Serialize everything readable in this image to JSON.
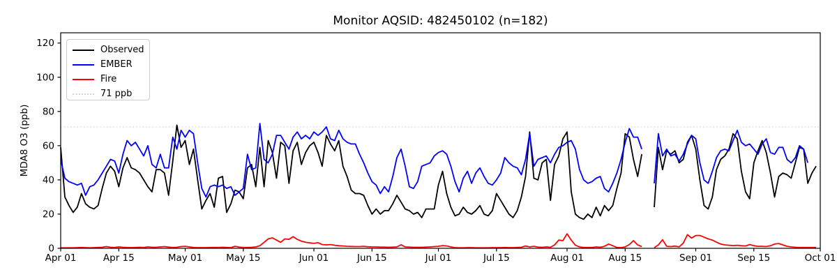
{
  "chart_data": {
    "type": "line",
    "title": "Monitor AQSID: 482450102 (n=182)",
    "ylabel": "MDA8 O3 (ppb)",
    "xlabel": "",
    "ylim": [
      0,
      126
    ],
    "y_ticks": [
      0,
      20,
      40,
      60,
      80,
      100,
      120
    ],
    "x_range_days": [
      0,
      183
    ],
    "x_ticks": [
      {
        "label": "Apr 01",
        "day": 0
      },
      {
        "label": "Apr 15",
        "day": 14
      },
      {
        "label": "May 01",
        "day": 30
      },
      {
        "label": "May 15",
        "day": 44
      },
      {
        "label": "Jun 01",
        "day": 61
      },
      {
        "label": "Jun 15",
        "day": 75
      },
      {
        "label": "Jul 01",
        "day": 91
      },
      {
        "label": "Jul 15",
        "day": 105
      },
      {
        "label": "Aug 01",
        "day": 122
      },
      {
        "label": "Aug 15",
        "day": 136
      },
      {
        "label": "Sep 01",
        "day": 153
      },
      {
        "label": "Sep 15",
        "day": 167
      },
      {
        "label": "Oct 01",
        "day": 183
      }
    ],
    "grid": false,
    "legend_position": "upper-left",
    "reference_line": {
      "label": "71 ppb",
      "value": 71,
      "color": "#d3d3d3",
      "style": "dotted"
    },
    "series": [
      {
        "name": "Observed",
        "color": "#000000",
        "values": [
          59,
          30,
          25,
          21,
          24,
          32,
          26,
          24,
          23,
          25,
          35,
          44,
          48,
          45,
          36,
          47,
          53,
          47,
          46,
          44,
          40,
          36,
          33,
          46,
          46,
          44,
          31,
          51,
          72,
          59,
          63,
          49,
          58,
          40,
          23,
          28,
          32,
          24,
          41,
          42,
          21,
          26,
          34,
          33,
          29,
          47,
          49,
          36,
          59,
          36,
          63,
          56,
          41,
          62,
          60,
          38,
          57,
          62,
          49,
          56,
          60,
          62,
          56,
          48,
          66,
          61,
          57,
          63,
          48,
          42,
          34,
          32,
          32,
          31,
          25,
          20,
          23,
          20,
          22,
          22,
          26,
          31,
          27,
          23,
          22,
          20,
          21,
          18,
          23,
          23,
          23,
          37,
          45,
          32,
          24,
          19,
          20,
          24,
          21,
          20,
          22,
          25,
          20,
          19,
          22,
          32,
          28,
          24,
          20,
          18,
          22,
          30,
          42,
          68,
          41,
          40,
          50,
          52,
          28,
          49,
          54,
          64,
          68,
          33,
          20,
          18,
          17,
          20,
          18,
          24,
          19,
          25,
          22,
          25,
          35,
          44,
          67,
          65,
          52,
          42,
          55,
          null,
          null,
          24,
          59,
          46,
          57,
          55,
          57,
          50,
          52,
          62,
          66,
          58,
          40,
          25,
          23,
          30,
          46,
          52,
          54,
          58,
          67,
          64,
          45,
          33,
          29,
          50,
          57,
          63,
          56,
          44,
          30,
          42,
          44,
          43,
          41,
          50,
          59,
          58,
          38,
          44,
          48,
          null
        ]
      },
      {
        "name": "EMBER",
        "color": "#0000ff",
        "values": [
          52,
          41,
          39,
          38,
          37,
          38,
          31,
          36,
          37,
          40,
          44,
          48,
          52,
          51,
          44,
          55,
          63,
          60,
          62,
          58,
          54,
          60,
          49,
          47,
          55,
          47,
          47,
          65,
          58,
          69,
          65,
          69,
          67,
          50,
          35,
          30,
          36,
          37,
          36,
          37,
          35,
          36,
          31,
          33,
          35,
          55,
          46,
          47,
          73,
          52,
          50,
          55,
          66,
          66,
          62,
          58,
          65,
          68,
          64,
          66,
          64,
          68,
          66,
          68,
          71,
          64,
          63,
          69,
          64,
          62,
          61,
          61,
          55,
          50,
          44,
          39,
          37,
          32,
          36,
          33,
          42,
          53,
          58,
          48,
          36,
          35,
          39,
          48,
          49,
          50,
          54,
          56,
          57,
          55,
          48,
          39,
          33,
          41,
          45,
          38,
          44,
          47,
          42,
          38,
          37,
          40,
          44,
          53,
          50,
          48,
          47,
          43,
          52,
          67,
          48,
          52,
          53,
          54,
          50,
          55,
          59,
          60,
          62,
          63,
          58,
          46,
          40,
          38,
          39,
          41,
          42,
          35,
          33,
          38,
          44,
          52,
          62,
          70,
          65,
          65,
          58,
          null,
          null,
          38,
          67,
          54,
          58,
          54,
          55,
          51,
          55,
          61,
          66,
          64,
          50,
          40,
          38,
          45,
          53,
          57,
          58,
          57,
          63,
          69,
          62,
          60,
          61,
          58,
          55,
          61,
          64,
          56,
          55,
          59,
          59,
          52,
          50,
          53,
          60,
          58,
          50,
          null,
          null,
          null
        ]
      },
      {
        "name": "Fire",
        "color": "#ff0000",
        "values": [
          0.3,
          0.3,
          0.3,
          0.3,
          0.4,
          0.5,
          0.4,
          0.3,
          0.4,
          0.5,
          0.6,
          1.0,
          0.6,
          0.5,
          0.8,
          0.6,
          0.5,
          0.4,
          0.5,
          0.6,
          0.5,
          0.8,
          0.6,
          0.6,
          0.8,
          1.0,
          0.7,
          0.5,
          0.6,
          1.0,
          1.2,
          0.8,
          0.5,
          0.4,
          0.4,
          0.4,
          0.5,
          0.5,
          0.5,
          0.6,
          0.5,
          0.4,
          1.2,
          0.7,
          0.5,
          0.5,
          0.6,
          0.8,
          1.5,
          3.5,
          5.5,
          6.1,
          4.8,
          3.5,
          5.5,
          5.2,
          6.8,
          5.2,
          4.2,
          3.6,
          3.2,
          2.9,
          3.3,
          2.2,
          2.0,
          2.2,
          1.8,
          1.5,
          1.4,
          1.2,
          1.1,
          1.0,
          1.0,
          1.2,
          0.9,
          0.8,
          0.8,
          0.7,
          0.7,
          0.6,
          0.7,
          0.8,
          2.1,
          0.8,
          0.7,
          0.6,
          0.6,
          0.6,
          0.7,
          0.8,
          1.0,
          1.2,
          1.6,
          1.4,
          0.8,
          0.4,
          0.3,
          0.3,
          0.4,
          0.4,
          0.3,
          0.3,
          0.3,
          0.3,
          0.4,
          0.4,
          0.4,
          0.5,
          0.4,
          0.4,
          0.5,
          0.6,
          1.4,
          0.8,
          1.2,
          0.7,
          0.6,
          0.8,
          0.6,
          2.0,
          4.8,
          4.5,
          8.5,
          4.8,
          1.8,
          0.8,
          0.5,
          0.5,
          0.5,
          0.8,
          0.6,
          1.2,
          2.5,
          1.5,
          0.5,
          0.4,
          0.8,
          2.2,
          4.5,
          2.0,
          1.0,
          null,
          null,
          0.4,
          2.0,
          5.0,
          1.2,
          1.0,
          1.3,
          0.8,
          3.0,
          8.0,
          6.0,
          7.5,
          7.5,
          6.5,
          5.5,
          4.8,
          3.6,
          2.5,
          2.0,
          1.8,
          1.6,
          1.8,
          1.5,
          1.4,
          2.2,
          1.5,
          1.2,
          1.2,
          1.0,
          1.5,
          2.5,
          2.8,
          2.0,
          1.2,
          0.8,
          0.6,
          0.5,
          0.5,
          0.5,
          0.5,
          0.5,
          null
        ]
      }
    ]
  }
}
